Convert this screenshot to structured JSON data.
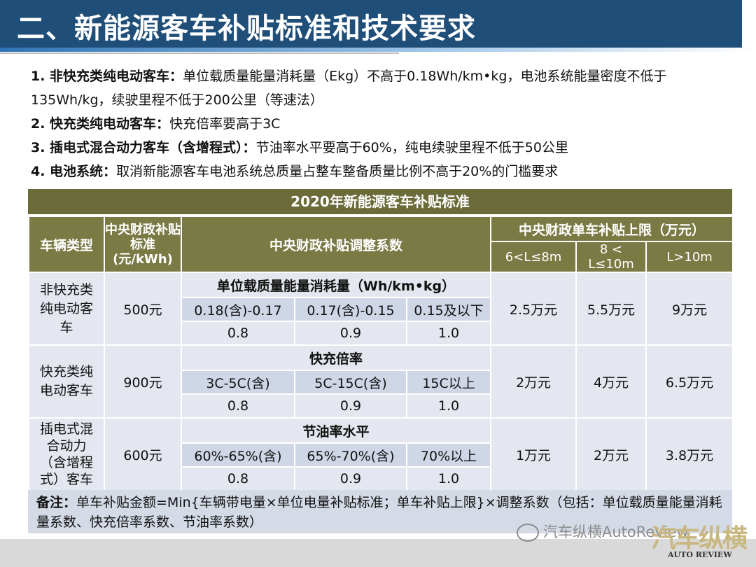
{
  "title": "二、新能源客车补贴标准和技术要求",
  "rules": [
    {
      "head": "1. 非快充类纯电动客车：",
      "text": "单位载质量能量消耗量（Ekg）不高于0.18Wh/km•kg，电池系统能量密度不低于135Wh/kg，续驶里程不低于200公里（等速法）"
    },
    {
      "head": "2. 快充类纯电动客车：",
      "text": "快充倍率要高于3C"
    },
    {
      "head": "3. 插电式混合动力客车（含增程式）：",
      "text": "节油率水平要高于60%，纯电续驶里程不低于50公里"
    },
    {
      "head": "4. 电池系统：",
      "text": "取消新能源客车电池系统总质量占整车整备质量比例不高于20%的门槛要求"
    }
  ],
  "table": {
    "caption": "2020年新能源客车补贴标准",
    "headers": {
      "vehicle_type": "车辆类型",
      "central_standard": "中央财政补贴标准(元/kWh)",
      "coefficient": "中央财政补贴调整系数",
      "cap": "中央财政单车补贴上限（万元）",
      "cap_bands": [
        "6<L≤8m",
        "8 < L≤10m",
        "L>10m"
      ]
    },
    "rows": [
      {
        "type": "非快充类纯电动客车",
        "standard": "500元",
        "metric": "单位载质量能量消耗量（Wh/km•kg）",
        "ranges": [
          "0.18(含)-0.17",
          "0.17(含)-0.15",
          "0.15及以下"
        ],
        "coefs": [
          "0.8",
          "0.9",
          "1.0"
        ],
        "caps": [
          "2.5万元",
          "5.5万元",
          "9万元"
        ]
      },
      {
        "type": "快充类纯电动客车",
        "standard": "900元",
        "metric": "快充倍率",
        "ranges": [
          "3C-5C(含)",
          "5C-15C(含)",
          "15C以上"
        ],
        "coefs": [
          "0.8",
          "0.9",
          "1.0"
        ],
        "caps": [
          "2万元",
          "4万元",
          "6.5万元"
        ]
      },
      {
        "type": "插电式混合动力（含增程式）客车",
        "standard": "600元",
        "metric": "节油率水平",
        "ranges": [
          "60%-65%(含)",
          "65%-70%(含)",
          "70%以上"
        ],
        "coefs": [
          "0.8",
          "0.9",
          "1.0"
        ],
        "caps": [
          "1万元",
          "2万元",
          "3.8万元"
        ]
      }
    ]
  },
  "note": {
    "label": "备注：",
    "text": "单车补贴金额=Min{车辆带电量×单位电量补贴标准；单车补贴上限}×调整系数（包括：单位载质量能量消耗量系数、快充倍率系数、节油率系数）"
  },
  "watermark": "汽车纵横AutoReview",
  "logo": {
    "main": "汽车纵横",
    "sub": "AUTO REVIEW"
  },
  "colors": {
    "title_bg": "#1f4e79",
    "table_header": "#7a7a45",
    "row_light": "#e4e7ef",
    "row_dark": "#cfd6e6"
  }
}
